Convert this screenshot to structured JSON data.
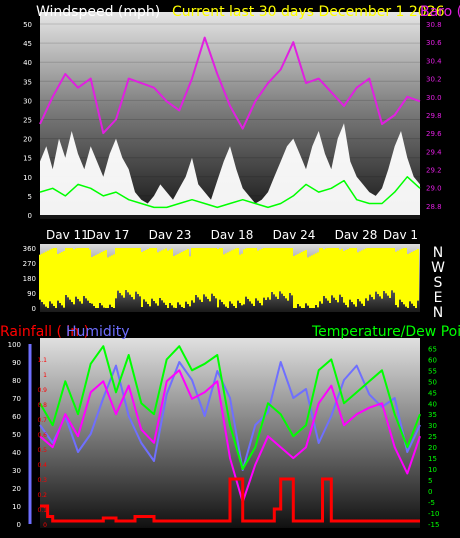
{
  "header": {
    "left_title": "Windspeed (mph)",
    "center_title": "Current last 30 days December 1 2026",
    "right_title": "Baro (inHg)"
  },
  "colors": {
    "wind": "#ffffff",
    "gust": "#00ff00",
    "baro": "#e020e0",
    "direction": "#ffff00",
    "rain": "#ff0000",
    "humidity": "#6f6fff",
    "temperature": "#00ff00",
    "dewpoint": "#ff00ff"
  },
  "chart_data": [
    {
      "type": "line",
      "title": "Current last 30 days December 1 2026",
      "x_labels": [
        "Dav 11",
        "Dav 17",
        "Dav 23",
        "Dav 18",
        "Dav 24",
        "Dav 28",
        "Dav 1"
      ],
      "x_range": [
        0,
        30
      ],
      "y_left": {
        "label": "Windspeed (mph)",
        "range": [
          0,
          50
        ],
        "ticks": [
          0,
          5,
          10,
          15,
          20,
          25,
          30,
          35,
          40,
          45,
          50
        ]
      },
      "y_right": {
        "label": "Baro (inHg)",
        "range": [
          28.7,
          30.8
        ],
        "ticks": [
          "28.8",
          "29.0",
          "29.2",
          "29.4",
          "29.6",
          "29.8",
          "30.0",
          "30.2",
          "30.4",
          "30.6",
          "30.8"
        ]
      },
      "series": [
        {
          "name": "Windspeed",
          "axis": "left",
          "x": [
            0,
            0.5,
            1,
            1.5,
            2,
            2.5,
            3,
            3.5,
            4,
            4.5,
            5,
            5.5,
            6,
            6.5,
            7,
            7.5,
            8,
            8.5,
            9,
            9.5,
            10,
            10.5,
            11,
            11.5,
            12,
            12.5,
            13,
            13.5,
            14,
            14.5,
            15,
            15.5,
            16,
            16.5,
            17,
            17.5,
            18,
            18.5,
            19,
            19.5,
            20,
            20.5,
            21,
            21.5,
            22,
            22.5,
            23,
            23.5,
            24,
            24.5,
            25,
            25.5,
            26,
            26.5,
            27,
            27.5,
            28,
            28.5,
            29,
            29.5,
            30
          ],
          "values": [
            14,
            18,
            12,
            20,
            15,
            22,
            16,
            12,
            18,
            14,
            10,
            16,
            20,
            15,
            12,
            6,
            4,
            3,
            5,
            8,
            6,
            4,
            7,
            10,
            15,
            8,
            6,
            4,
            9,
            14,
            18,
            12,
            7,
            5,
            3,
            4,
            6,
            10,
            14,
            18,
            20,
            16,
            12,
            18,
            22,
            16,
            12,
            20,
            24,
            14,
            10,
            8,
            6,
            5,
            7,
            12,
            18,
            22,
            15,
            10,
            8
          ]
        },
        {
          "name": "Gust",
          "axis": "left",
          "x": [
            0,
            1,
            2,
            3,
            4,
            5,
            6,
            7,
            8,
            9,
            10,
            11,
            12,
            13,
            14,
            15,
            16,
            17,
            18,
            19,
            20,
            21,
            22,
            23,
            24,
            25,
            26,
            27,
            28,
            29,
            30
          ],
          "values": [
            6,
            7,
            5,
            8,
            7,
            5,
            6,
            4,
            3,
            2,
            2,
            3,
            4,
            3,
            2,
            3,
            4,
            3,
            2,
            3,
            5,
            8,
            6,
            7,
            9,
            4,
            3,
            3,
            6,
            10,
            7
          ]
        },
        {
          "name": "Baro",
          "axis": "right",
          "x": [
            0,
            1,
            2,
            3,
            4,
            5,
            6,
            7,
            8,
            9,
            10,
            11,
            12,
            13,
            14,
            15,
            16,
            17,
            18,
            19,
            20,
            21,
            22,
            23,
            24,
            25,
            26,
            27,
            28,
            29,
            30
          ],
          "values": [
            29.7,
            30.0,
            30.25,
            30.1,
            30.2,
            29.6,
            29.75,
            30.2,
            30.15,
            30.1,
            29.95,
            29.85,
            30.2,
            30.65,
            30.25,
            29.9,
            29.65,
            29.95,
            30.15,
            30.3,
            30.6,
            30.15,
            30.2,
            30.05,
            29.9,
            30.1,
            30.2,
            29.7,
            29.8,
            30.0,
            29.95
          ]
        }
      ]
    },
    {
      "type": "line",
      "title": "",
      "x_range": [
        0,
        30
      ],
      "y_left": {
        "range": [
          0,
          360
        ],
        "ticks": [
          0,
          90,
          180,
          270,
          360
        ]
      },
      "compass_labels": [
        "N",
        "W",
        "S",
        "E",
        "N"
      ],
      "series": [
        {
          "name": "Wind direction",
          "axis": "left",
          "x": [
            0,
            2,
            4,
            6,
            8,
            10,
            12,
            14,
            16,
            18,
            20,
            22,
            24,
            26,
            28,
            30
          ],
          "values": [
            200,
            230,
            180,
            260,
            210,
            190,
            240,
            200,
            220,
            250,
            180,
            230,
            210,
            260,
            200,
            230
          ],
          "spread": [
            0,
            360
          ]
        }
      ]
    },
    {
      "type": "line",
      "title": "",
      "x_range": [
        0,
        30
      ],
      "y_left_rain": {
        "label": "Rainfall ( in )",
        "range": [
          0,
          1.2
        ],
        "ticks": [
          "0",
          "0.1",
          "0.2",
          "0.3",
          "0.4",
          "0.5",
          "0.6",
          "0.7",
          "0.8",
          "0.9",
          "1",
          "1.1"
        ]
      },
      "y_left_humidity": {
        "label": "Humidity",
        "range": [
          0,
          100
        ],
        "ticks": [
          0,
          10,
          20,
          30,
          40,
          50,
          60,
          70,
          80,
          90,
          100
        ]
      },
      "y_right": {
        "label": "Temperature/Dew Point (F)",
        "range": [
          -15,
          67
        ],
        "ticks": [
          -15,
          -10,
          -5,
          0,
          5,
          10,
          15,
          20,
          25,
          30,
          35,
          40,
          45,
          50,
          55,
          60,
          65
        ]
      },
      "series": [
        {
          "name": "Rainfall",
          "axis": "rain",
          "x": [
            0,
            0.3,
            0.6,
            1,
            4,
            5,
            5.5,
            6,
            7,
            7.5,
            8,
            9,
            9.5,
            10,
            10.5,
            11,
            12,
            13,
            14,
            15,
            15.8,
            16,
            16.3,
            16.5,
            17,
            17.5,
            18,
            18.5,
            19,
            19.5,
            20,
            21,
            21.5,
            22,
            22.3,
            22.6,
            23,
            24,
            25,
            26,
            27,
            28,
            29,
            30
          ],
          "values": [
            0.12,
            0.12,
            0.05,
            0.02,
            0.02,
            0.04,
            0.04,
            0.02,
            0.02,
            0.05,
            0.05,
            0.02,
            0.02,
            0.02,
            0.02,
            0.02,
            0.02,
            0.02,
            0.02,
            0.3,
            0.3,
            0.02,
            0.02,
            0.02,
            0.02,
            0.02,
            0.02,
            0.1,
            0.3,
            0.3,
            0.02,
            0.02,
            0.02,
            0.02,
            0.3,
            0.3,
            0.02,
            0.02,
            0.02,
            0.02,
            0.02,
            0.02,
            0.02,
            0.02
          ]
        },
        {
          "name": "Humidity",
          "axis": "humidity",
          "x": [
            0,
            1,
            2,
            3,
            4,
            5,
            6,
            7,
            8,
            9,
            10,
            11,
            12,
            13,
            14,
            15,
            16,
            17,
            18,
            19,
            20,
            21,
            22,
            23,
            24,
            25,
            26,
            27,
            28,
            29,
            30
          ],
          "values": [
            55,
            45,
            60,
            40,
            50,
            70,
            88,
            60,
            45,
            35,
            72,
            90,
            80,
            60,
            85,
            70,
            30,
            55,
            62,
            90,
            70,
            75,
            45,
            60,
            80,
            88,
            72,
            65,
            70,
            40,
            55
          ]
        },
        {
          "name": "Temperature",
          "axis": "right",
          "x": [
            0,
            1,
            2,
            3,
            4,
            5,
            6,
            7,
            8,
            9,
            10,
            11,
            12,
            13,
            14,
            15,
            16,
            17,
            18,
            19,
            20,
            21,
            22,
            23,
            24,
            25,
            26,
            27,
            28,
            29,
            30
          ],
          "values": [
            40,
            30,
            50,
            35,
            58,
            66,
            45,
            62,
            40,
            35,
            60,
            66,
            55,
            58,
            62,
            30,
            10,
            20,
            40,
            35,
            25,
            30,
            55,
            60,
            40,
            45,
            50,
            55,
            35,
            20,
            35
          ]
        },
        {
          "name": "Dew Point",
          "axis": "right",
          "x": [
            0,
            1,
            2,
            3,
            4,
            5,
            6,
            7,
            8,
            9,
            10,
            11,
            12,
            13,
            14,
            15,
            16,
            17,
            18,
            19,
            20,
            21,
            22,
            23,
            24,
            25,
            26,
            27,
            28,
            29,
            30
          ],
          "values": [
            25,
            20,
            35,
            25,
            45,
            50,
            35,
            48,
            28,
            22,
            50,
            55,
            42,
            45,
            50,
            15,
            -5,
            12,
            25,
            20,
            15,
            20,
            40,
            48,
            30,
            35,
            38,
            40,
            20,
            8,
            25
          ]
        }
      ]
    }
  ]
}
